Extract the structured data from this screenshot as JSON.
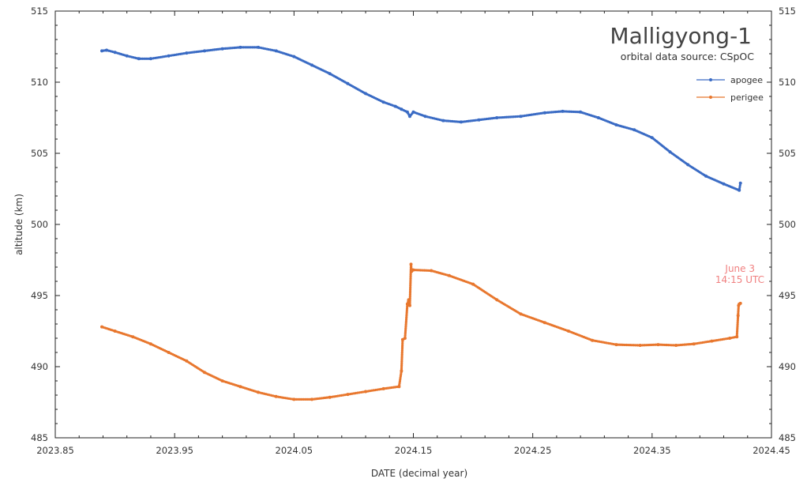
{
  "chart_data": {
    "type": "line",
    "title": "Malligyong-1",
    "subtitle": "orbital data source:  CSpOC",
    "xlabel": "DATE (decimal year)",
    "ylabel": "altitude (km)",
    "xlim": [
      2023.85,
      2024.45
    ],
    "ylim": [
      485,
      515
    ],
    "xticks": [
      "2023.85",
      "2023.95",
      "2024.05",
      "2024.15",
      "2024.25",
      "2024.35",
      "2024.45"
    ],
    "yticks": [
      "485",
      "490",
      "495",
      "500",
      "505",
      "510",
      "515"
    ],
    "grid": false,
    "legend_position": "top-right",
    "annotation": {
      "line1": "June 3",
      "line2": "14:15 UTC",
      "color": "#f08080"
    },
    "series": [
      {
        "name": "apogee",
        "color": "#3a6bc4",
        "x": [
          2023.889,
          2023.893,
          2023.9,
          2023.91,
          2023.92,
          2023.93,
          2023.945,
          2023.96,
          2023.975,
          2023.99,
          2024.005,
          2024.02,
          2024.035,
          2024.05,
          2024.065,
          2024.08,
          2024.095,
          2024.11,
          2024.125,
          2024.135,
          2024.14,
          2024.145,
          2024.147,
          2024.15,
          2024.16,
          2024.175,
          2024.19,
          2024.205,
          2024.22,
          2024.24,
          2024.26,
          2024.275,
          2024.29,
          2024.305,
          2024.32,
          2024.335,
          2024.35,
          2024.365,
          2024.38,
          2024.395,
          2024.41,
          2024.423,
          2024.424
        ],
        "y": [
          512.2,
          512.25,
          512.1,
          511.85,
          511.65,
          511.65,
          511.85,
          512.05,
          512.2,
          512.35,
          512.45,
          512.45,
          512.2,
          511.8,
          511.2,
          510.6,
          509.9,
          509.2,
          508.6,
          508.3,
          508.1,
          507.9,
          507.6,
          507.9,
          507.6,
          507.3,
          507.2,
          507.35,
          507.5,
          507.6,
          507.85,
          507.95,
          507.9,
          507.5,
          507.0,
          506.65,
          506.1,
          505.1,
          504.2,
          503.4,
          502.85,
          502.4,
          502.9
        ]
      },
      {
        "name": "perigee",
        "color": "#e8772e",
        "x": [
          2023.889,
          2023.9,
          2023.915,
          2023.93,
          2023.945,
          2023.96,
          2023.975,
          2023.99,
          2024.005,
          2024.02,
          2024.035,
          2024.05,
          2024.065,
          2024.08,
          2024.095,
          2024.11,
          2024.125,
          2024.138,
          2024.14,
          2024.141,
          2024.143,
          2024.145,
          2024.146,
          2024.147,
          2024.148,
          2024.1485,
          2024.15,
          2024.165,
          2024.18,
          2024.2,
          2024.22,
          2024.24,
          2024.26,
          2024.28,
          2024.3,
          2024.32,
          2024.34,
          2024.355,
          2024.37,
          2024.385,
          2024.4,
          2024.415,
          2024.421,
          2024.422,
          2024.4225,
          2024.423,
          2024.424
        ],
        "y": [
          492.8,
          492.5,
          492.1,
          491.6,
          491.0,
          490.4,
          489.6,
          489.0,
          488.6,
          488.2,
          487.9,
          487.7,
          487.7,
          487.85,
          488.05,
          488.25,
          488.45,
          488.6,
          489.7,
          491.9,
          492.0,
          494.4,
          494.7,
          494.3,
          497.2,
          496.7,
          496.8,
          496.75,
          496.4,
          495.8,
          494.7,
          493.7,
          493.1,
          492.5,
          491.85,
          491.55,
          491.5,
          491.55,
          491.5,
          491.6,
          491.8,
          492.0,
          492.1,
          493.6,
          494.3,
          494.4,
          494.45
        ]
      }
    ]
  }
}
